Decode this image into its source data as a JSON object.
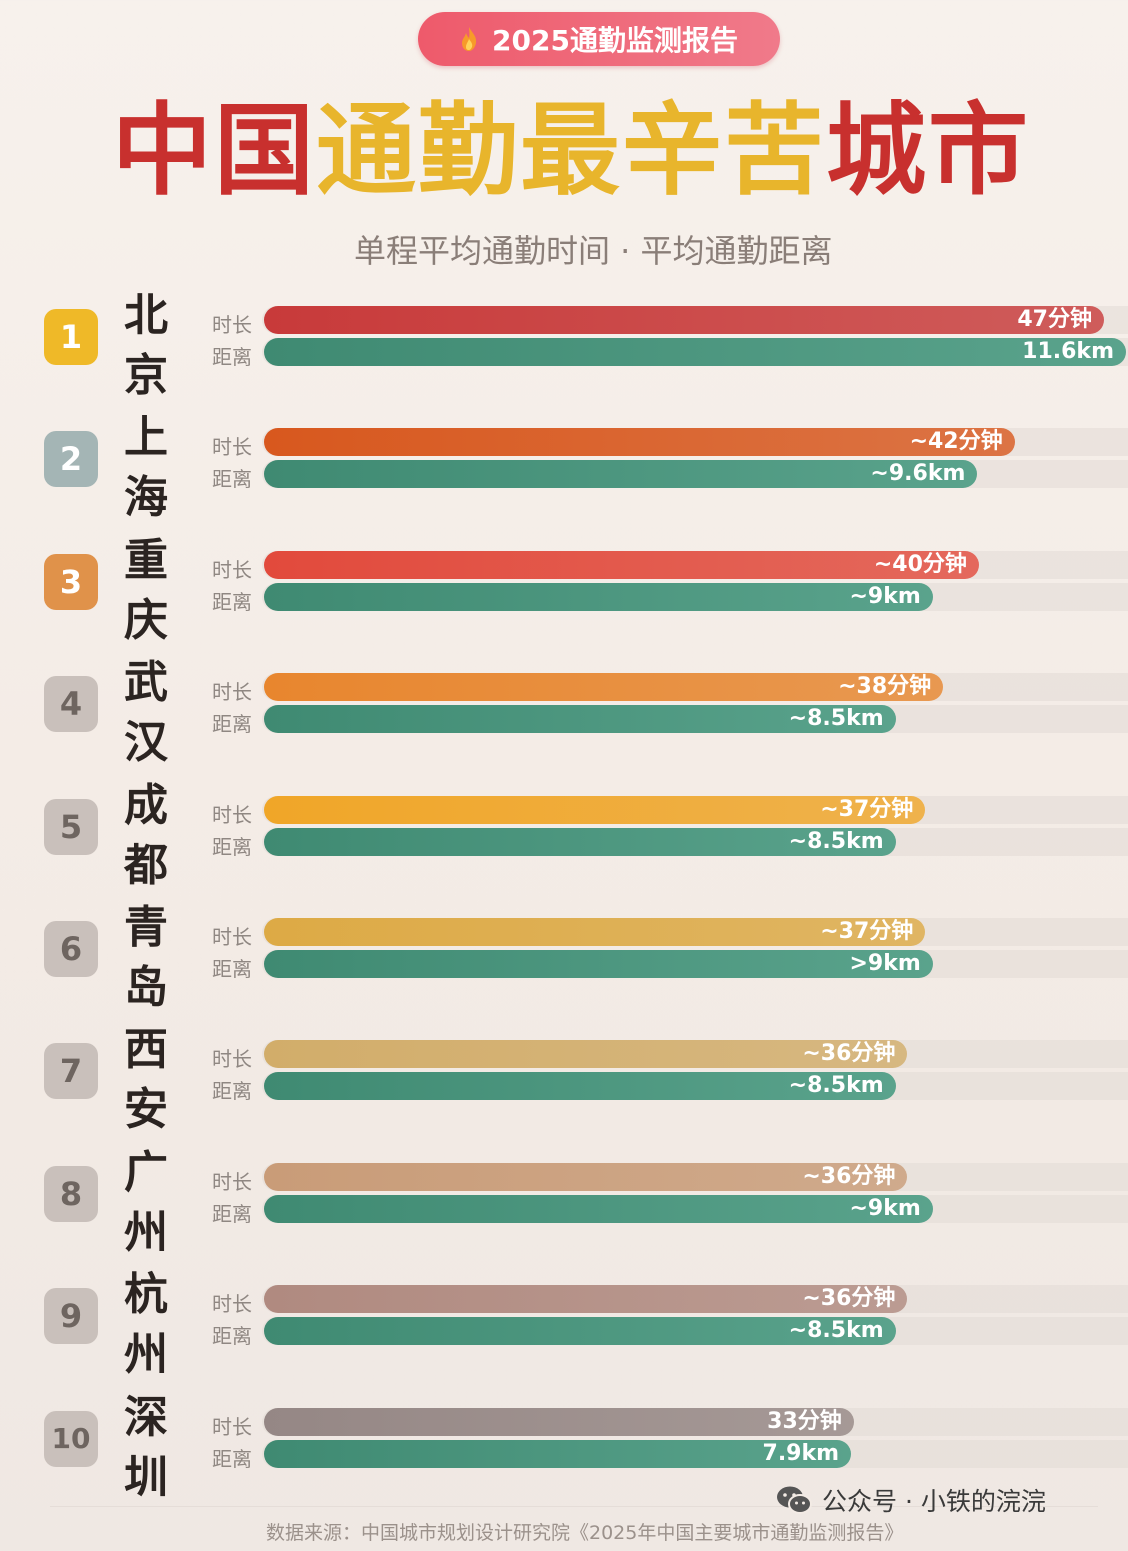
{
  "header": {
    "badge": "2025通勤监测报告",
    "title_part1": "中国",
    "title_part2": "通勤最辛苦",
    "title_part3": "城市",
    "subtitle": "单程平均通勤时间 · 平均通勤距离"
  },
  "labels": {
    "time": "时长",
    "distance": "距离"
  },
  "colors": {
    "distance_bar": "#4a957d",
    "title_red": "#c8302e",
    "title_gold": "#e8b52c"
  },
  "chart_data": {
    "type": "bar",
    "categories": [
      "北京",
      "上海",
      "重庆",
      "武汉",
      "成都",
      "青岛",
      "西安",
      "广州",
      "杭州",
      "深圳"
    ],
    "ranks": [
      "1",
      "2",
      "3",
      "4",
      "5",
      "6",
      "7",
      "8",
      "9",
      "10"
    ],
    "series": [
      {
        "name": "时长",
        "unit": "分钟",
        "values": [
          47,
          42,
          40,
          38,
          37,
          37,
          36,
          36,
          36,
          33
        ],
        "labels": [
          "47分钟",
          "~42分钟",
          "~40分钟",
          "~38分钟",
          "~37分钟",
          "~37分钟",
          "~36分钟",
          "~36分钟",
          "~36分钟",
          "33分钟"
        ],
        "colors": [
          "#c83a3a",
          "#d8581e",
          "#e24a3c",
          "#e8862e",
          "#f0a628",
          "#ddaa45",
          "#d2ad6a",
          "#c99c78",
          "#b08a80",
          "#958785"
        ]
      },
      {
        "name": "距离",
        "unit": "km",
        "values": [
          11.6,
          9.6,
          9,
          8.5,
          8.5,
          9,
          8.5,
          9,
          8.5,
          7.9
        ],
        "labels": [
          "11.6km",
          "~9.6km",
          "~9km",
          "~8.5km",
          "~8.5km",
          ">9km",
          "~8.5km",
          "~9km",
          "~8.5km",
          "7.9km"
        ]
      }
    ],
    "rank_colors": [
      "#efb928",
      "#a4b5b5",
      "#e0924a",
      "#c9c0bb",
      "#c9c0bb",
      "#c9c0bb",
      "#c9c0bb",
      "#c9c0bb",
      "#c9c0bb",
      "#c9c0bb"
    ]
  },
  "footer": {
    "source": "数据来源：中国城市规划设计研究院《2025年中国主要城市通勤监测报告》",
    "watermark": "公众号 · 小铁的浣浣"
  }
}
